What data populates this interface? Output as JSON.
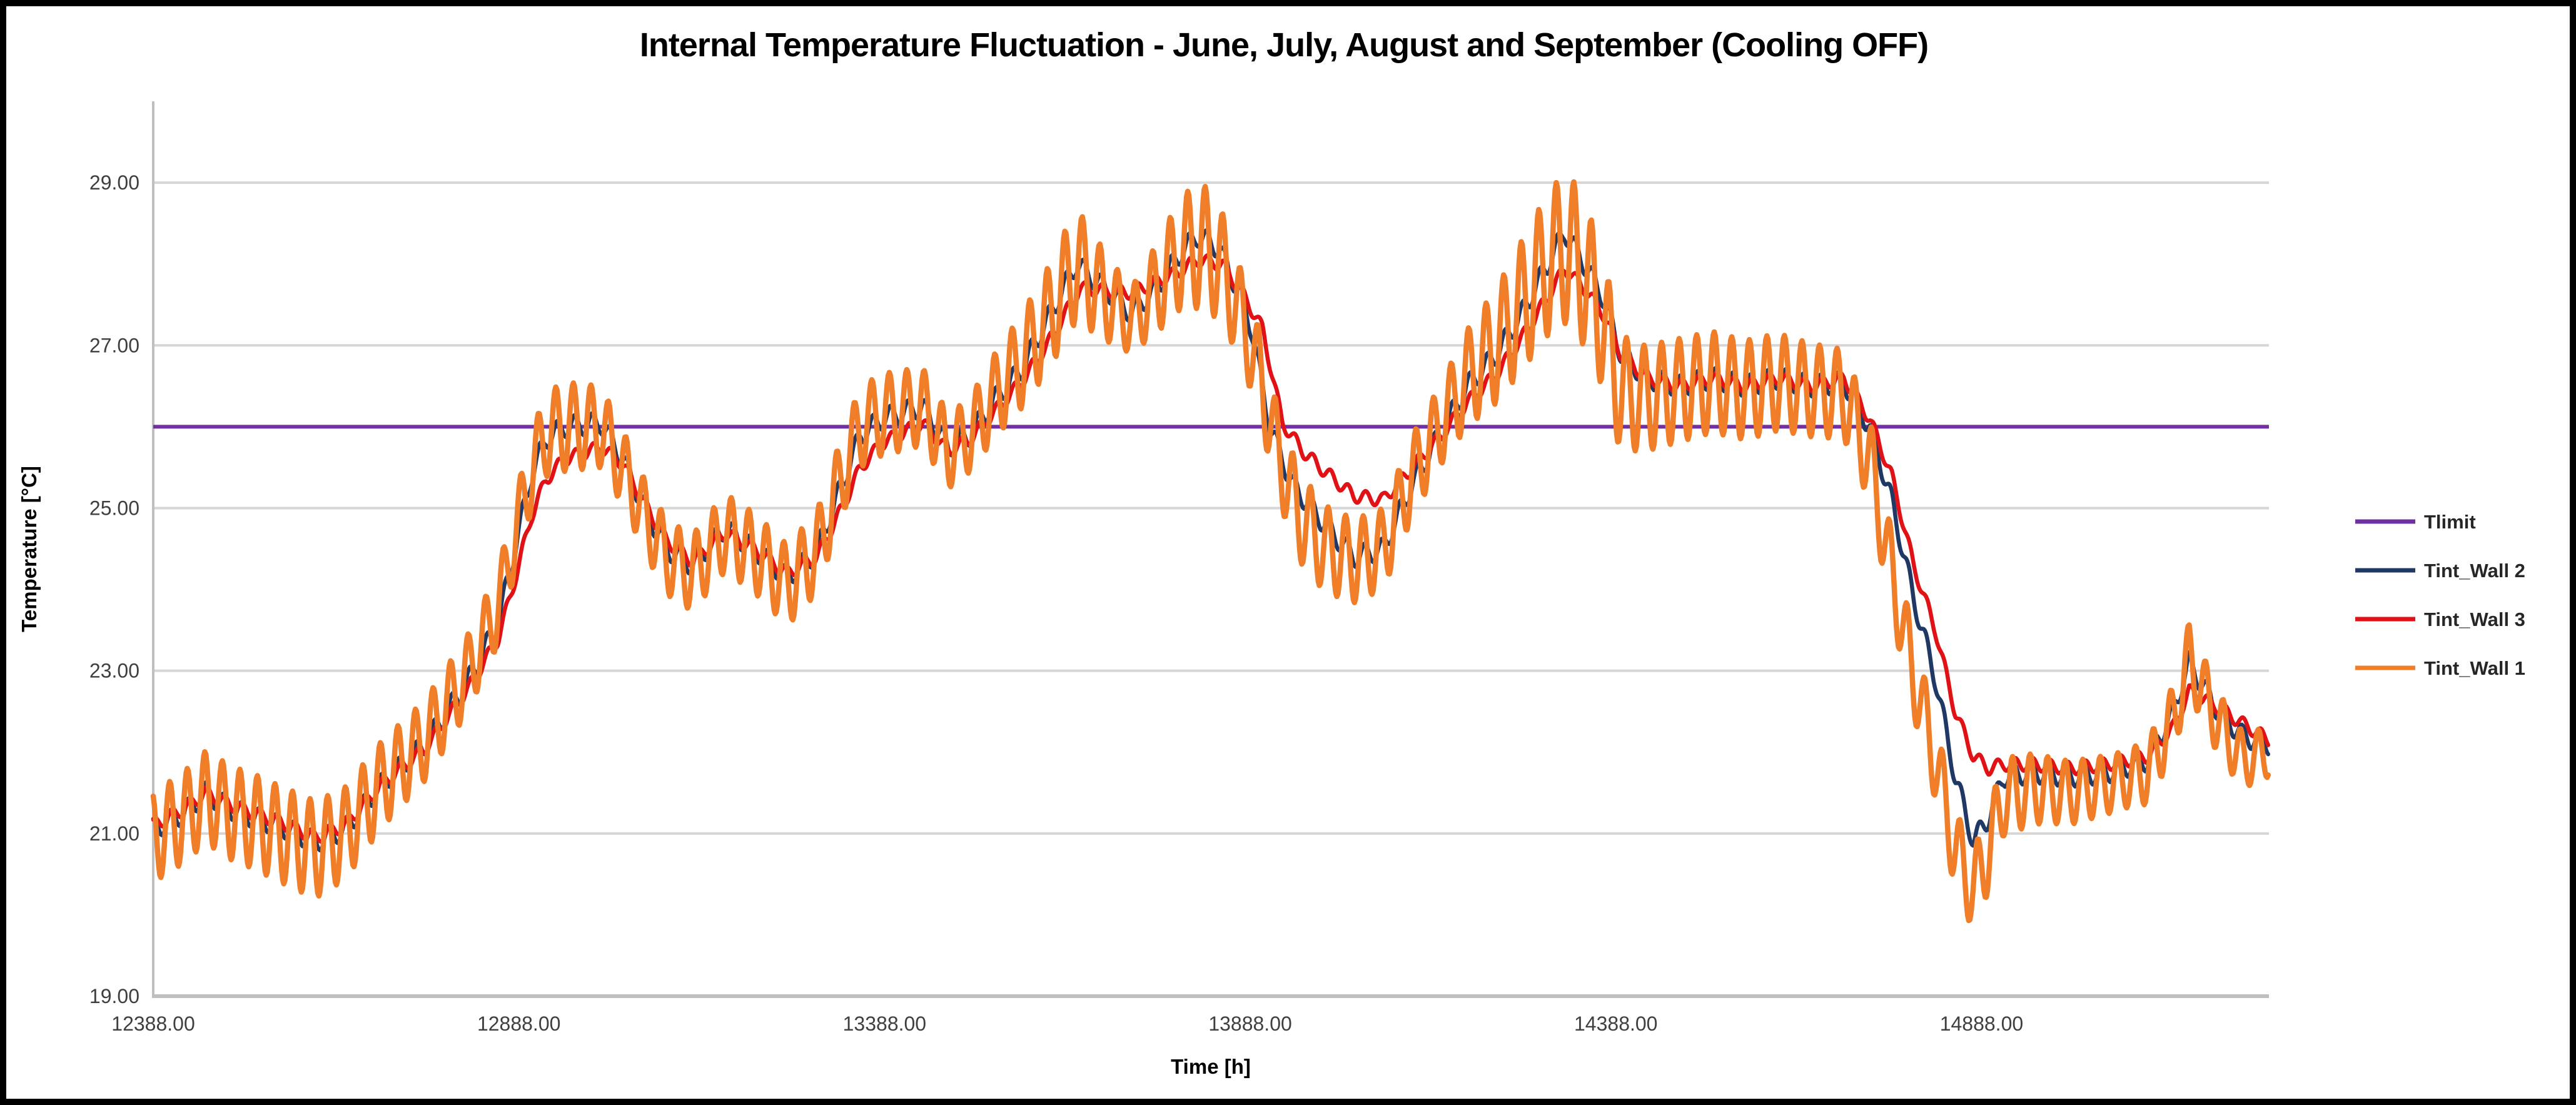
{
  "window": {
    "kind": "chart-screenshot",
    "background": "#ffffff",
    "frame_color": "#000000"
  },
  "chart_data": {
    "type": "line",
    "title": "Internal Temperature Fluctuation - June, July, August and September (Cooling OFF)",
    "xlabel": "Time [h]",
    "ylabel": "Temperature [°C]",
    "grid": "horizontal-only",
    "legend_position": "right",
    "xlim": [
      12388,
      15281
    ],
    "ylim": [
      19,
      30
    ],
    "x_axis": {
      "ticks": [
        12388,
        12888,
        13388,
        13888,
        14388,
        14888
      ],
      "tick_labels": [
        "12388.00",
        "12888.00",
        "13388.00",
        "13888.00",
        "14388.00",
        "14888.00"
      ]
    },
    "y_axis": {
      "ticks": [
        19,
        21,
        23,
        25,
        27,
        29
      ],
      "tick_labels": [
        "19.00",
        "21.00",
        "23.00",
        "25.00",
        "27.00",
        "29.00"
      ]
    },
    "colors": {
      "tlimit": "#7030A0",
      "wall2": "#1F3864",
      "wall3": "#E11216",
      "wall1": "#F07E28",
      "gridline": "#D6D6D6",
      "axis_line": "#BFBFBF",
      "tick_text": "#3F3F3F"
    },
    "daily_period_h": 24,
    "tlimit": {
      "name": "Tlimit",
      "value": 26.0
    },
    "series": [
      {
        "name": "Tint_Wall 2",
        "color": "#1F3864",
        "width": 6.5,
        "phase_h": 16.5,
        "amp": [
          [
            12388,
            0.13
          ],
          [
            15281,
            0.13
          ]
        ],
        "base": [
          [
            12388,
            21.05
          ],
          [
            12430,
            21.25
          ],
          [
            12460,
            21.5
          ],
          [
            12495,
            21.3
          ],
          [
            12525,
            21.2
          ],
          [
            12560,
            21.1
          ],
          [
            12610,
            20.9
          ],
          [
            12650,
            21.05
          ],
          [
            12700,
            21.6
          ],
          [
            12760,
            22.1
          ],
          [
            12820,
            22.9
          ],
          [
            12860,
            23.6
          ],
          [
            12885,
            24.6
          ],
          [
            12905,
            25.4
          ],
          [
            12925,
            25.85
          ],
          [
            12950,
            26.0
          ],
          [
            13000,
            26.05
          ],
          [
            13030,
            25.6
          ],
          [
            13060,
            25.0
          ],
          [
            13090,
            24.5
          ],
          [
            13125,
            24.3
          ],
          [
            13170,
            24.75
          ],
          [
            13210,
            24.5
          ],
          [
            13255,
            24.15
          ],
          [
            13295,
            24.45
          ],
          [
            13330,
            25.3
          ],
          [
            13355,
            25.9
          ],
          [
            13385,
            26.1
          ],
          [
            13440,
            26.25
          ],
          [
            13475,
            25.75
          ],
          [
            13505,
            25.9
          ],
          [
            13540,
            26.35
          ],
          [
            13575,
            26.7
          ],
          [
            13610,
            27.3
          ],
          [
            13650,
            28.0
          ],
          [
            13690,
            27.7
          ],
          [
            13725,
            27.4
          ],
          [
            13760,
            27.7
          ],
          [
            13790,
            28.1
          ],
          [
            13815,
            28.35
          ],
          [
            13845,
            28.2
          ],
          [
            13875,
            27.6
          ],
          [
            13890,
            27.2
          ],
          [
            13915,
            26.0
          ],
          [
            13945,
            25.3
          ],
          [
            13990,
            24.8
          ],
          [
            14030,
            24.4
          ],
          [
            14070,
            24.5
          ],
          [
            14110,
            25.3
          ],
          [
            14150,
            25.95
          ],
          [
            14185,
            26.5
          ],
          [
            14225,
            26.9
          ],
          [
            14260,
            27.4
          ],
          [
            14295,
            28.0
          ],
          [
            14318,
            28.4
          ],
          [
            14345,
            28.0
          ],
          [
            14370,
            27.6
          ],
          [
            14395,
            26.9
          ],
          [
            14430,
            26.6
          ],
          [
            14475,
            26.5
          ],
          [
            14520,
            26.6
          ],
          [
            14565,
            26.5
          ],
          [
            14610,
            26.6
          ],
          [
            14655,
            26.5
          ],
          [
            14700,
            26.55
          ],
          [
            14735,
            26.0
          ],
          [
            14765,
            25.1
          ],
          [
            14795,
            23.9
          ],
          [
            14825,
            22.9
          ],
          [
            14852,
            21.7
          ],
          [
            14877,
            20.9
          ],
          [
            14898,
            21.2
          ],
          [
            14918,
            21.7
          ],
          [
            14960,
            21.75
          ],
          [
            15010,
            21.7
          ],
          [
            15060,
            21.75
          ],
          [
            15115,
            21.9
          ],
          [
            15150,
            22.5
          ],
          [
            15172,
            23.1
          ],
          [
            15212,
            22.5
          ],
          [
            15245,
            22.2
          ],
          [
            15281,
            22.1
          ]
        ]
      },
      {
        "name": "Tint_Wall 3",
        "color": "#E11216",
        "width": 6.5,
        "phase_h": 18,
        "amp": [
          [
            12388,
            0.08
          ],
          [
            15281,
            0.08
          ]
        ],
        "base": [
          [
            12388,
            21.1
          ],
          [
            12430,
            21.3
          ],
          [
            12460,
            21.5
          ],
          [
            12495,
            21.35
          ],
          [
            12525,
            21.25
          ],
          [
            12560,
            21.15
          ],
          [
            12610,
            20.95
          ],
          [
            12650,
            21.1
          ],
          [
            12700,
            21.6
          ],
          [
            12760,
            22.05
          ],
          [
            12820,
            22.8
          ],
          [
            12860,
            23.4
          ],
          [
            12885,
            24.2
          ],
          [
            12905,
            24.9
          ],
          [
            12925,
            25.35
          ],
          [
            12950,
            25.6
          ],
          [
            13000,
            25.75
          ],
          [
            13030,
            25.55
          ],
          [
            13060,
            25.05
          ],
          [
            13090,
            24.6
          ],
          [
            13125,
            24.35
          ],
          [
            13170,
            24.7
          ],
          [
            13210,
            24.5
          ],
          [
            13255,
            24.2
          ],
          [
            13295,
            24.4
          ],
          [
            13330,
            25.0
          ],
          [
            13355,
            25.5
          ],
          [
            13385,
            25.8
          ],
          [
            13440,
            26.05
          ],
          [
            13475,
            25.7
          ],
          [
            13505,
            25.85
          ],
          [
            13540,
            26.2
          ],
          [
            13575,
            26.55
          ],
          [
            13610,
            27.0
          ],
          [
            13655,
            27.7
          ],
          [
            13725,
            27.65
          ],
          [
            13790,
            27.9
          ],
          [
            13815,
            28.05
          ],
          [
            13850,
            28.0
          ],
          [
            13880,
            27.6
          ],
          [
            13905,
            27.2
          ],
          [
            13932,
            26.05
          ],
          [
            13960,
            25.7
          ],
          [
            13990,
            25.45
          ],
          [
            14030,
            25.15
          ],
          [
            14070,
            25.1
          ],
          [
            14110,
            25.5
          ],
          [
            14150,
            25.9
          ],
          [
            14185,
            26.3
          ],
          [
            14225,
            26.65
          ],
          [
            14260,
            27.1
          ],
          [
            14295,
            27.6
          ],
          [
            14318,
            27.95
          ],
          [
            14345,
            27.7
          ],
          [
            14370,
            27.4
          ],
          [
            14395,
            26.9
          ],
          [
            14430,
            26.6
          ],
          [
            14475,
            26.5
          ],
          [
            14520,
            26.6
          ],
          [
            14565,
            26.5
          ],
          [
            14610,
            26.6
          ],
          [
            14655,
            26.5
          ],
          [
            14700,
            26.6
          ],
          [
            14735,
            26.1
          ],
          [
            14765,
            25.4
          ],
          [
            14795,
            24.3
          ],
          [
            14825,
            23.5
          ],
          [
            14852,
            22.5
          ],
          [
            14877,
            21.95
          ],
          [
            14898,
            21.8
          ],
          [
            14918,
            21.85
          ],
          [
            14960,
            21.85
          ],
          [
            15010,
            21.8
          ],
          [
            15060,
            21.85
          ],
          [
            15115,
            21.95
          ],
          [
            15150,
            22.3
          ],
          [
            15172,
            22.75
          ],
          [
            15212,
            22.55
          ],
          [
            15245,
            22.35
          ],
          [
            15281,
            22.15
          ]
        ]
      },
      {
        "name": "Tint_Wall 1",
        "color": "#F07E28",
        "width": 8.5,
        "phase_h": 14.5,
        "amp": [
          [
            12388,
            0.55
          ],
          [
            12600,
            0.6
          ],
          [
            12750,
            0.5
          ],
          [
            12880,
            0.45
          ],
          [
            12950,
            0.55
          ],
          [
            13050,
            0.45
          ],
          [
            13255,
            0.5
          ],
          [
            13400,
            0.5
          ],
          [
            13500,
            0.45
          ],
          [
            13650,
            0.7
          ],
          [
            13725,
            0.4
          ],
          [
            13820,
            0.8
          ],
          [
            13880,
            0.55
          ],
          [
            13955,
            0.55
          ],
          [
            14060,
            0.5
          ],
          [
            14150,
            0.5
          ],
          [
            14260,
            0.8
          ],
          [
            14330,
            0.95
          ],
          [
            14420,
            0.65
          ],
          [
            14600,
            0.6
          ],
          [
            14700,
            0.55
          ],
          [
            14800,
            0.5
          ],
          [
            14900,
            0.5
          ],
          [
            14990,
            0.4
          ],
          [
            15080,
            0.35
          ],
          [
            15170,
            0.45
          ],
          [
            15281,
            0.3
          ]
        ],
        "base": [
          [
            12388,
            20.95
          ],
          [
            12430,
            21.2
          ],
          [
            12460,
            21.45
          ],
          [
            12495,
            21.25
          ],
          [
            12525,
            21.15
          ],
          [
            12560,
            21.0
          ],
          [
            12610,
            20.8
          ],
          [
            12650,
            21.0
          ],
          [
            12700,
            21.6
          ],
          [
            12760,
            22.15
          ],
          [
            12820,
            23.0
          ],
          [
            12860,
            23.8
          ],
          [
            12885,
            24.75
          ],
          [
            12905,
            25.45
          ],
          [
            12925,
            25.9
          ],
          [
            12950,
            26.0
          ],
          [
            13000,
            26.0
          ],
          [
            13030,
            25.5
          ],
          [
            13060,
            24.9
          ],
          [
            13090,
            24.4
          ],
          [
            13125,
            24.2
          ],
          [
            13170,
            24.7
          ],
          [
            13210,
            24.45
          ],
          [
            13255,
            24.05
          ],
          [
            13295,
            24.45
          ],
          [
            13330,
            25.4
          ],
          [
            13355,
            26.0
          ],
          [
            13385,
            26.15
          ],
          [
            13440,
            26.25
          ],
          [
            13475,
            25.7
          ],
          [
            13505,
            25.9
          ],
          [
            13540,
            26.4
          ],
          [
            13575,
            26.8
          ],
          [
            13610,
            27.3
          ],
          [
            13650,
            28.0
          ],
          [
            13690,
            27.6
          ],
          [
            13725,
            27.3
          ],
          [
            13760,
            27.7
          ],
          [
            13790,
            28.1
          ],
          [
            13818,
            28.25
          ],
          [
            13848,
            28.0
          ],
          [
            13878,
            27.3
          ],
          [
            13902,
            26.6
          ],
          [
            13925,
            25.7
          ],
          [
            13955,
            24.9
          ],
          [
            13990,
            24.5
          ],
          [
            14030,
            24.35
          ],
          [
            14070,
            24.5
          ],
          [
            14110,
            25.4
          ],
          [
            14150,
            26.05
          ],
          [
            14185,
            26.6
          ],
          [
            14225,
            27.0
          ],
          [
            14260,
            27.5
          ],
          [
            14295,
            28.0
          ],
          [
            14318,
            28.2
          ],
          [
            14345,
            27.9
          ],
          [
            14370,
            27.3
          ],
          [
            14395,
            26.4
          ],
          [
            14430,
            26.35
          ],
          [
            14475,
            26.45
          ],
          [
            14520,
            26.55
          ],
          [
            14565,
            26.45
          ],
          [
            14610,
            26.55
          ],
          [
            14655,
            26.45
          ],
          [
            14700,
            26.4
          ],
          [
            14735,
            25.6
          ],
          [
            14765,
            24.2
          ],
          [
            14795,
            22.95
          ],
          [
            14825,
            21.9
          ],
          [
            14852,
            20.8
          ],
          [
            14877,
            20.3
          ],
          [
            14898,
            20.8
          ],
          [
            14918,
            21.45
          ],
          [
            14960,
            21.55
          ],
          [
            15010,
            21.5
          ],
          [
            15060,
            21.6
          ],
          [
            15115,
            21.75
          ],
          [
            15150,
            22.4
          ],
          [
            15172,
            23.15
          ],
          [
            15212,
            22.35
          ],
          [
            15245,
            21.9
          ],
          [
            15281,
            22.0
          ]
        ]
      }
    ],
    "legend": {
      "items": [
        {
          "label": "Tlimit",
          "color": "#7030A0"
        },
        {
          "label": "Tint_Wall 2",
          "color": "#1F3864"
        },
        {
          "label": "Tint_Wall 3",
          "color": "#E11216"
        },
        {
          "label": "Tint_Wall 1",
          "color": "#F07E28"
        }
      ]
    }
  }
}
